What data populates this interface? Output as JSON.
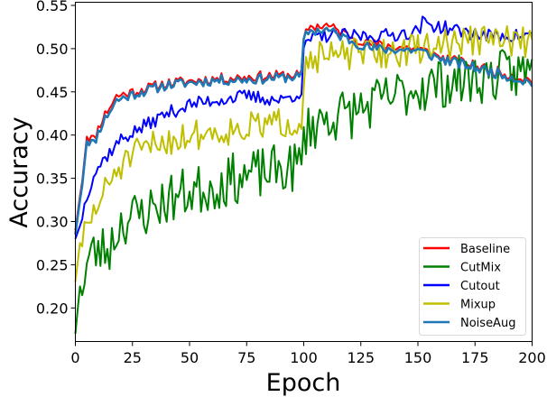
{
  "chart_data": {
    "type": "line",
    "title": "",
    "xlabel": "Epoch",
    "ylabel": "Accuracy",
    "xlim": [
      0,
      200
    ],
    "ylim": [
      0.16,
      0.552
    ],
    "xticks": [
      0,
      25,
      50,
      75,
      100,
      125,
      150,
      175,
      200
    ],
    "xtick_labels": [
      "0",
      "25",
      "50",
      "75",
      "100",
      "125",
      "150",
      "175",
      "200"
    ],
    "yticks": [
      0.2,
      0.25,
      0.3,
      0.35,
      0.4,
      0.45,
      0.5,
      0.55
    ],
    "ytick_labels": [
      "0.20",
      "0.25",
      "0.30",
      "0.35",
      "0.40",
      "0.45",
      "0.50",
      "0.55"
    ],
    "grid": false,
    "legend_position": "lower right",
    "series_order_drawn": [
      "Baseline",
      "CutMix",
      "Cutout",
      "Mixup",
      "NoiseAug"
    ],
    "x_description": "epochs 0..200 in steps of 1",
    "series": [
      {
        "name": "Baseline",
        "color": "#ff0000",
        "trend_keypoints": [
          [
            0,
            0.29
          ],
          [
            3,
            0.35
          ],
          [
            5,
            0.4
          ],
          [
            8,
            0.395
          ],
          [
            12,
            0.42
          ],
          [
            18,
            0.445
          ],
          [
            25,
            0.45
          ],
          [
            40,
            0.46
          ],
          [
            60,
            0.465
          ],
          [
            80,
            0.468
          ],
          [
            99,
            0.47
          ],
          [
            100,
            0.51
          ],
          [
            102,
            0.525
          ],
          [
            110,
            0.527
          ],
          [
            120,
            0.515
          ],
          [
            130,
            0.505
          ],
          [
            150,
            0.5
          ],
          [
            160,
            0.49
          ],
          [
            175,
            0.48
          ],
          [
            190,
            0.47
          ],
          [
            200,
            0.463
          ]
        ],
        "noise_amplitude": 0.006
      },
      {
        "name": "CutMix",
        "color": "#008000",
        "trend_keypoints": [
          [
            0,
            0.17
          ],
          [
            2,
            0.225
          ],
          [
            4,
            0.235
          ],
          [
            6,
            0.26
          ],
          [
            10,
            0.265
          ],
          [
            15,
            0.27
          ],
          [
            20,
            0.3
          ],
          [
            30,
            0.31
          ],
          [
            40,
            0.325
          ],
          [
            50,
            0.335
          ],
          [
            60,
            0.34
          ],
          [
            70,
            0.35
          ],
          [
            80,
            0.355
          ],
          [
            90,
            0.36
          ],
          [
            99,
            0.365
          ],
          [
            100,
            0.4
          ],
          [
            103,
            0.41
          ],
          [
            110,
            0.42
          ],
          [
            120,
            0.425
          ],
          [
            130,
            0.435
          ],
          [
            140,
            0.445
          ],
          [
            150,
            0.455
          ],
          [
            160,
            0.46
          ],
          [
            175,
            0.465
          ],
          [
            190,
            0.47
          ],
          [
            200,
            0.475
          ]
        ],
        "noise_amplitude": 0.03
      },
      {
        "name": "Cutout",
        "color": "#0000ff",
        "trend_keypoints": [
          [
            0,
            0.28
          ],
          [
            2,
            0.295
          ],
          [
            5,
            0.33
          ],
          [
            8,
            0.355
          ],
          [
            12,
            0.37
          ],
          [
            15,
            0.38
          ],
          [
            20,
            0.395
          ],
          [
            30,
            0.41
          ],
          [
            40,
            0.425
          ],
          [
            50,
            0.435
          ],
          [
            60,
            0.44
          ],
          [
            75,
            0.445
          ],
          [
            90,
            0.44
          ],
          [
            99,
            0.45
          ],
          [
            100,
            0.495
          ],
          [
            102,
            0.51
          ],
          [
            110,
            0.515
          ],
          [
            120,
            0.515
          ],
          [
            135,
            0.515
          ],
          [
            150,
            0.52
          ],
          [
            152,
            0.53
          ],
          [
            165,
            0.522
          ],
          [
            180,
            0.515
          ],
          [
            200,
            0.515
          ]
        ],
        "noise_amplitude": 0.008
      },
      {
        "name": "Mixup",
        "color": "#bfbf00",
        "trend_keypoints": [
          [
            0,
            0.23
          ],
          [
            2,
            0.275
          ],
          [
            5,
            0.29
          ],
          [
            8,
            0.31
          ],
          [
            12,
            0.33
          ],
          [
            18,
            0.36
          ],
          [
            25,
            0.375
          ],
          [
            35,
            0.39
          ],
          [
            50,
            0.4
          ],
          [
            65,
            0.405
          ],
          [
            80,
            0.41
          ],
          [
            95,
            0.415
          ],
          [
            99,
            0.42
          ],
          [
            100,
            0.47
          ],
          [
            102,
            0.49
          ],
          [
            110,
            0.49
          ],
          [
            125,
            0.495
          ],
          [
            140,
            0.495
          ],
          [
            150,
            0.5
          ],
          [
            160,
            0.505
          ],
          [
            175,
            0.51
          ],
          [
            190,
            0.51
          ],
          [
            200,
            0.505
          ]
        ],
        "noise_amplitude": 0.018
      },
      {
        "name": "NoiseAug",
        "color": "#1f77b4",
        "trend_keypoints": [
          [
            0,
            0.285
          ],
          [
            3,
            0.345
          ],
          [
            5,
            0.395
          ],
          [
            8,
            0.39
          ],
          [
            12,
            0.415
          ],
          [
            18,
            0.44
          ],
          [
            25,
            0.447
          ],
          [
            40,
            0.458
          ],
          [
            60,
            0.463
          ],
          [
            80,
            0.465
          ],
          [
            99,
            0.468
          ],
          [
            100,
            0.51
          ],
          [
            102,
            0.52
          ],
          [
            110,
            0.522
          ],
          [
            120,
            0.51
          ],
          [
            130,
            0.5
          ],
          [
            150,
            0.498
          ],
          [
            160,
            0.488
          ],
          [
            175,
            0.478
          ],
          [
            190,
            0.468
          ],
          [
            200,
            0.46
          ]
        ],
        "noise_amplitude": 0.006
      }
    ]
  },
  "legend": {
    "items": [
      {
        "label": "Baseline",
        "color": "#ff0000"
      },
      {
        "label": "CutMix",
        "color": "#008000"
      },
      {
        "label": "Cutout",
        "color": "#0000ff"
      },
      {
        "label": "Mixup",
        "color": "#bfbf00"
      },
      {
        "label": "NoiseAug",
        "color": "#1f77b4"
      }
    ]
  }
}
